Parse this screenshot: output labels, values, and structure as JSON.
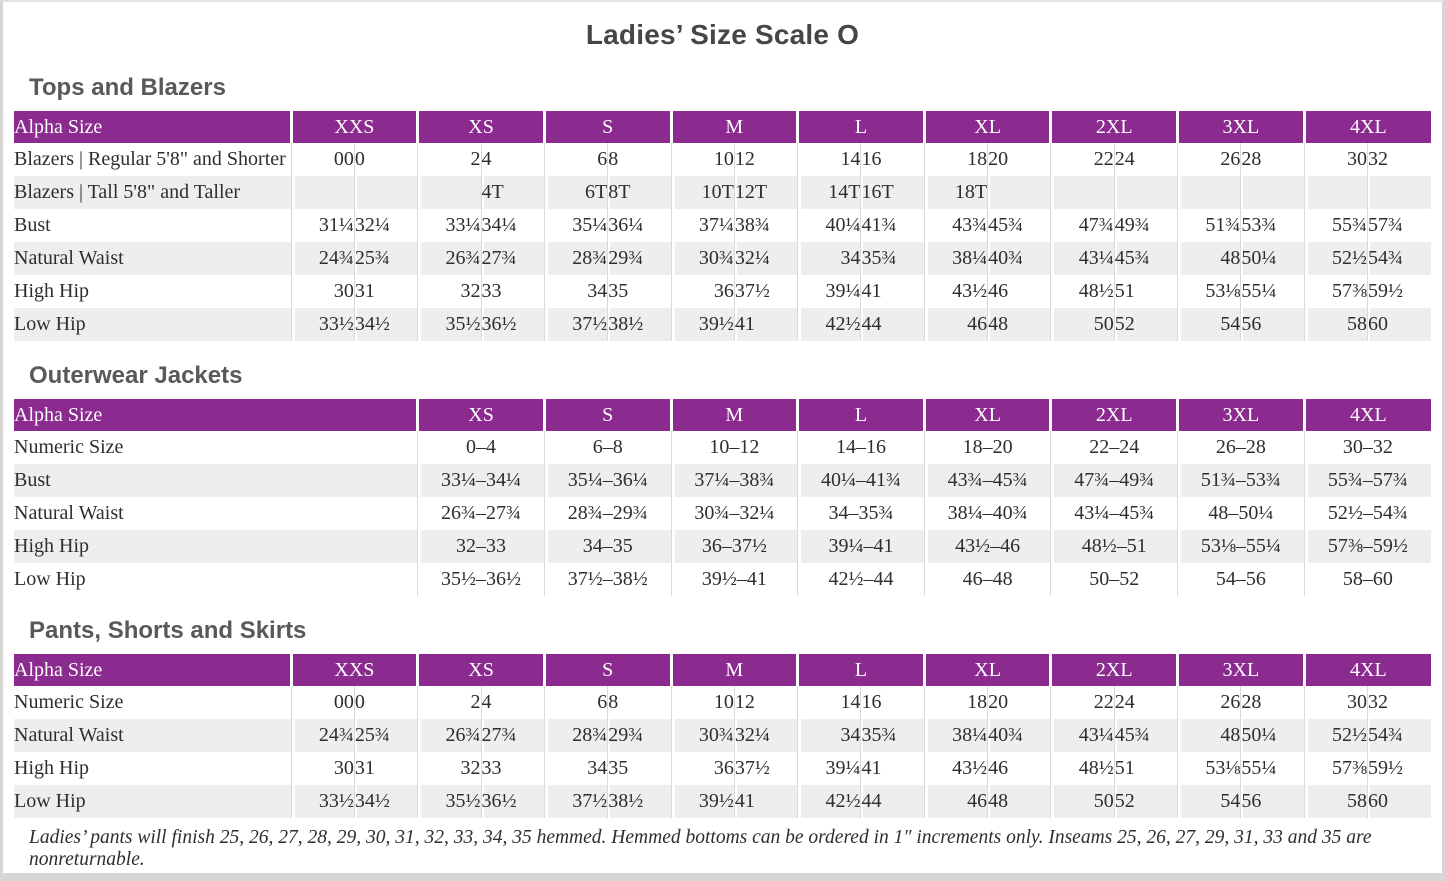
{
  "page": {
    "title": "Ladies’ Size Scale O",
    "footnote": "Ladies’ pants will finish 25, 26, 27, 28, 29, 30, 31, 32, 33, 34, 35 hemmed. Hemmed bottoms can be ordered in 1″ increments only. Inseams 25, 26, 27, 29, 31, 33 and 35 are nonreturnable.",
    "colors": {
      "header_purple": "#8B2A8F",
      "row_stripe": "#EFEEEE",
      "divider_gray": "#D9D9D9",
      "text_dark": "#2E2E2E",
      "heading_gray": "#595959",
      "title_gray": "#464646",
      "page_frame": "#D6D6D5"
    }
  },
  "tables": [
    {
      "heading": "Tops and Blazers",
      "corner_label": "Alpha Size",
      "sizes": [
        "XXS",
        "XS",
        "S",
        "M",
        "L",
        "XL",
        "2XL",
        "3XL",
        "4XL"
      ],
      "merged_label_column": false,
      "rows": [
        {
          "label": "Blazers | Regular 5'8\" and Shorter",
          "values": [
            [
              "00",
              "0"
            ],
            [
              "2",
              "4"
            ],
            [
              "6",
              "8"
            ],
            [
              "10",
              "12"
            ],
            [
              "14",
              "16"
            ],
            [
              "18",
              "20"
            ],
            [
              "22",
              "24"
            ],
            [
              "26",
              "28"
            ],
            [
              "30",
              "32"
            ]
          ]
        },
        {
          "label": "Blazers | Tall 5'8\" and Taller",
          "values": [
            [
              "",
              ""
            ],
            [
              "",
              "4T"
            ],
            [
              "6T",
              "8T"
            ],
            [
              "10T",
              "12T"
            ],
            [
              "14T",
              "16T"
            ],
            [
              "18T",
              ""
            ],
            [
              "",
              ""
            ],
            [
              "",
              ""
            ],
            [
              "",
              ""
            ]
          ]
        },
        {
          "label": "Bust",
          "values": [
            [
              "31¼",
              "32¼"
            ],
            [
              "33¼",
              "34¼"
            ],
            [
              "35¼",
              "36¼"
            ],
            [
              "37¼",
              "38¾"
            ],
            [
              "40¼",
              "41¾"
            ],
            [
              "43¾",
              "45¾"
            ],
            [
              "47¾",
              "49¾"
            ],
            [
              "51¾",
              "53¾"
            ],
            [
              "55¾",
              "57¾"
            ]
          ]
        },
        {
          "label": "Natural Waist",
          "values": [
            [
              "24¾",
              "25¾"
            ],
            [
              "26¾",
              "27¾"
            ],
            [
              "28¾",
              "29¾"
            ],
            [
              "30¾",
              "32¼"
            ],
            [
              "34",
              "35¾"
            ],
            [
              "38¼",
              "40¾"
            ],
            [
              "43¼",
              "45¾"
            ],
            [
              "48",
              "50¼"
            ],
            [
              "52½",
              "54¾"
            ]
          ]
        },
        {
          "label": "High Hip",
          "values": [
            [
              "30",
              "31"
            ],
            [
              "32",
              "33"
            ],
            [
              "34",
              "35"
            ],
            [
              "36",
              "37½"
            ],
            [
              "39¼",
              "41"
            ],
            [
              "43½",
              "46"
            ],
            [
              "48½",
              "51"
            ],
            [
              "53⅛",
              "55¼"
            ],
            [
              "57⅜",
              "59½"
            ]
          ]
        },
        {
          "label": "Low Hip",
          "values": [
            [
              "33½",
              "34½"
            ],
            [
              "35½",
              "36½"
            ],
            [
              "37½",
              "38½"
            ],
            [
              "39½",
              "41"
            ],
            [
              "42½",
              "44"
            ],
            [
              "46",
              "48"
            ],
            [
              "50",
              "52"
            ],
            [
              "54",
              "56"
            ],
            [
              "58",
              "60"
            ]
          ]
        }
      ]
    },
    {
      "heading": "Outerwear Jackets",
      "corner_label": "Alpha Size",
      "sizes": [
        "XS",
        "S",
        "M",
        "L",
        "XL",
        "2XL",
        "3XL",
        "4XL"
      ],
      "merged_label_column": true,
      "rows": [
        {
          "label": "Numeric Size",
          "values": [
            "0–4",
            "6–8",
            "10–12",
            "14–16",
            "18–20",
            "22–24",
            "26–28",
            "30–32"
          ]
        },
        {
          "label": "Bust",
          "values": [
            "33¼–34¼",
            "35¼–36¼",
            "37¼–38¾",
            "40¼–41¾",
            "43¾–45¾",
            "47¾–49¾",
            "51¾–53¾",
            "55¾–57¾"
          ]
        },
        {
          "label": "Natural Waist",
          "values": [
            "26¾–27¾",
            "28¾–29¾",
            "30¾–32¼",
            "34–35¾",
            "38¼–40¾",
            "43¼–45¾",
            "48–50¼",
            "52½–54¾"
          ]
        },
        {
          "label": "High Hip",
          "values": [
            "32–33",
            "34–35",
            "36–37½",
            "39¼–41",
            "43½–46",
            "48½–51",
            "53⅛–55¼",
            "57⅜–59½"
          ]
        },
        {
          "label": "Low Hip",
          "values": [
            "35½–36½",
            "37½–38½",
            "39½–41",
            "42½–44",
            "46–48",
            "50–52",
            "54–56",
            "58–60"
          ]
        }
      ]
    },
    {
      "heading": "Pants, Shorts and Skirts",
      "corner_label": "Alpha Size",
      "sizes": [
        "XXS",
        "XS",
        "S",
        "M",
        "L",
        "XL",
        "2XL",
        "3XL",
        "4XL"
      ],
      "merged_label_column": false,
      "rows": [
        {
          "label": "Numeric Size",
          "values": [
            [
              "00",
              "0"
            ],
            [
              "2",
              "4"
            ],
            [
              "6",
              "8"
            ],
            [
              "10",
              "12"
            ],
            [
              "14",
              "16"
            ],
            [
              "18",
              "20"
            ],
            [
              "22",
              "24"
            ],
            [
              "26",
              "28"
            ],
            [
              "30",
              "32"
            ]
          ]
        },
        {
          "label": "Natural Waist",
          "values": [
            [
              "24¾",
              "25¾"
            ],
            [
              "26¾",
              "27¾"
            ],
            [
              "28¾",
              "29¾"
            ],
            [
              "30¾",
              "32¼"
            ],
            [
              "34",
              "35¾"
            ],
            [
              "38¼",
              "40¾"
            ],
            [
              "43¼",
              "45¾"
            ],
            [
              "48",
              "50¼"
            ],
            [
              "52½",
              "54¾"
            ]
          ]
        },
        {
          "label": "High Hip",
          "values": [
            [
              "30",
              "31"
            ],
            [
              "32",
              "33"
            ],
            [
              "34",
              "35"
            ],
            [
              "36",
              "37½"
            ],
            [
              "39¼",
              "41"
            ],
            [
              "43½",
              "46"
            ],
            [
              "48½",
              "51"
            ],
            [
              "53⅛",
              "55¼"
            ],
            [
              "57⅜",
              "59½"
            ]
          ]
        },
        {
          "label": "Low Hip",
          "values": [
            [
              "33½",
              "34½"
            ],
            [
              "35½",
              "36½"
            ],
            [
              "37½",
              "38½"
            ],
            [
              "39½",
              "41"
            ],
            [
              "42½",
              "44"
            ],
            [
              "46",
              "48"
            ],
            [
              "50",
              "52"
            ],
            [
              "54",
              "56"
            ],
            [
              "58",
              "60"
            ]
          ]
        }
      ]
    }
  ]
}
